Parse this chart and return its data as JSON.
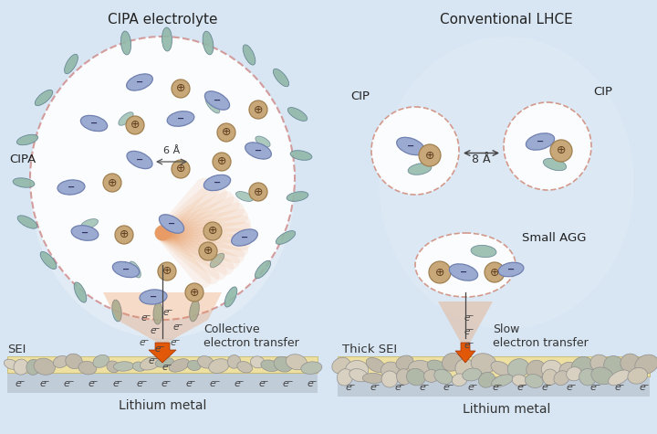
{
  "bg_color": "#d8e6f3",
  "title_left": "CIPA electrolyte",
  "title_right": "Conventional LHCE",
  "label_cipa": "CIPA",
  "label_sei_left": "SEI",
  "label_sei_right": "Thick SEI",
  "label_collective": "Collective\nelectron transfer",
  "label_slow": "Slow\nelectron transfer",
  "label_lithium": "Lithium metal",
  "label_6A": "6 Å",
  "label_8A": "8 Å",
  "label_cip_left": "CIP",
  "label_cip_right": "CIP",
  "label_small_agg": "Small AGG",
  "anion_color": "#9aaad0",
  "anion_edge": "#7080b0",
  "cation_color": "#c8a878",
  "cation_edge": "#a08050",
  "solvent_color": "#90b8a8",
  "solvent_edge": "#608090",
  "sei_color": "#eee0a0",
  "sei_edge": "#c0b060",
  "rock_colors": [
    "#c0b8a8",
    "#d0c8b5",
    "#b8c0b2",
    "#c8c0b0",
    "#b0b8a8",
    "#d8d0c0"
  ],
  "arrow_color": "#e05808",
  "arrow_edge": "#a03000",
  "stem_color": "#444444",
  "lithium_color": "#c0ccd8",
  "electron_color": "#444444",
  "glow_color": "#e89050",
  "bg_glow_color": "#c8d8f0"
}
